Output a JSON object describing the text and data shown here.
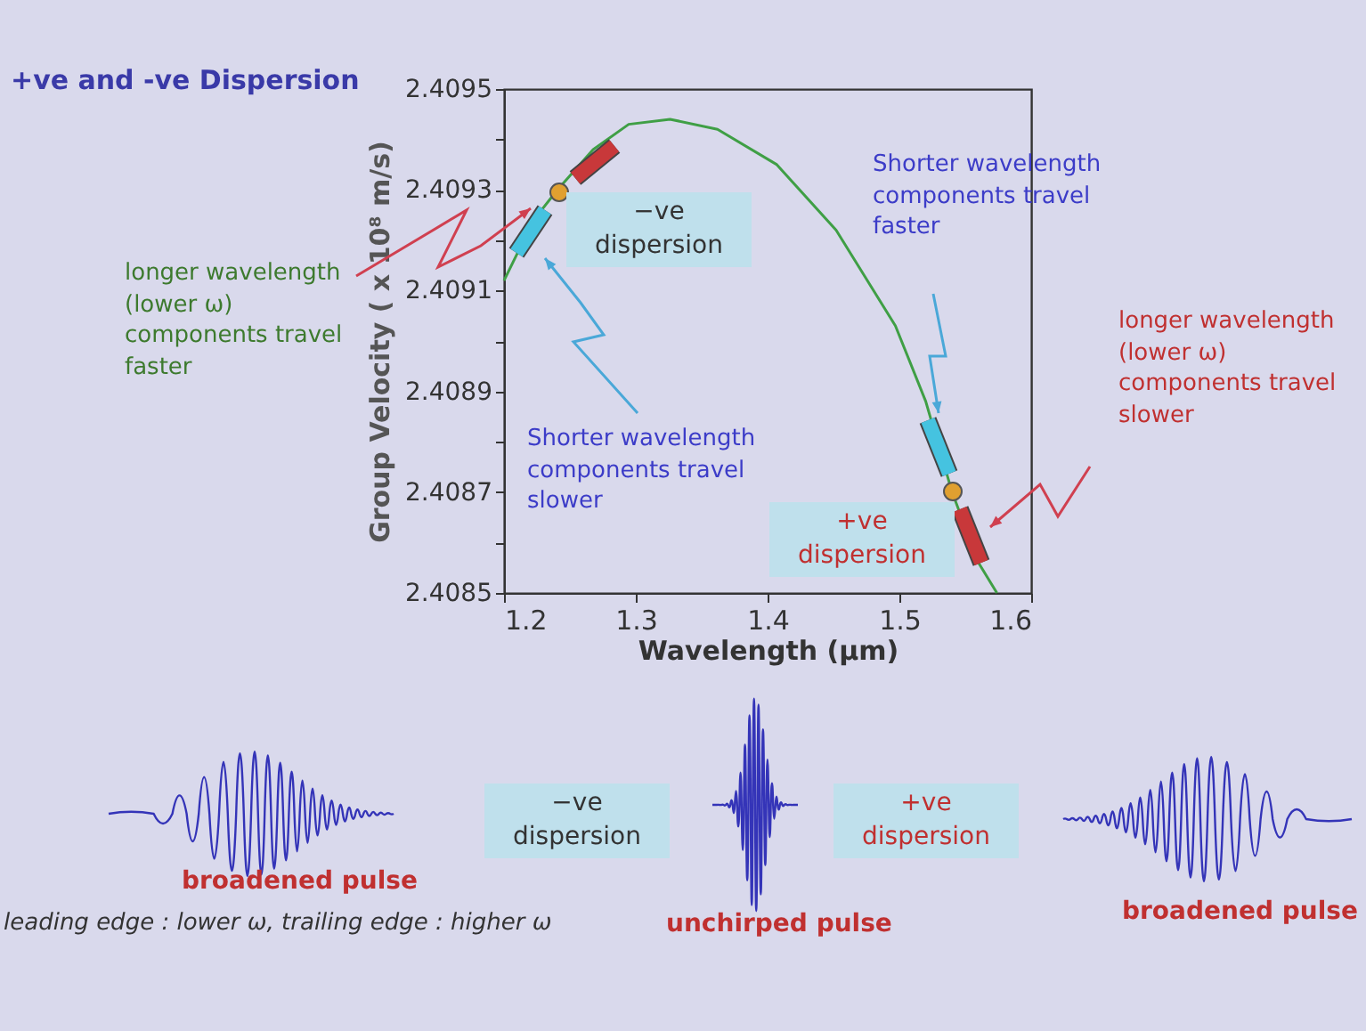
{
  "chart_data": {
    "type": "line",
    "title": "+ve and -ve Dispersion",
    "xlabel": "Wavelength (µm)",
    "ylabel": "Group Velocity ( x 10⁸ m/s)",
    "x": [
      1.2,
      1.2225,
      1.2405,
      1.2676,
      1.2946,
      1.326,
      1.362,
      1.407,
      1.452,
      1.497,
      1.52,
      1.54,
      1.56,
      1.574
    ],
    "series": [
      {
        "color": "#3f9f45",
        "values": [
          2.40912,
          2.40924,
          2.4093,
          2.40938,
          2.40943,
          2.40944,
          2.40942,
          2.40935,
          2.40922,
          2.40903,
          2.40888,
          2.4087,
          2.40856,
          2.4085
        ]
      }
    ],
    "xlim": [
      1.2,
      1.6
    ],
    "xticks": [
      1.2,
      1.3,
      1.4,
      1.5,
      1.6
    ],
    "ylim": [
      2.4085,
      2.4095
    ],
    "yticks": [
      2.4085,
      {
        "value": 2.4086,
        "label": null
      },
      2.4087,
      {
        "value": 2.4088,
        "label": null
      },
      2.4089,
      {
        "value": 2.409,
        "label": null
      },
      2.4091,
      {
        "value": 2.4092,
        "label": null
      },
      2.4093,
      {
        "value": 2.4094,
        "label": null
      },
      2.4095
    ],
    "grid": false,
    "marker": "none",
    "line_style": "solid",
    "annotations": [
      "−ve dispersion",
      "Shorter wavelength components travel slower",
      "Shorter wavelength components travel faster",
      "+ve dispersion",
      "longer wavelength (lower ω) components travel faster",
      "longer wavelength (lower ω) components travel slower",
      "−ve dispersion",
      "+ve dispersion",
      "broadened pulse",
      "unchirped pulse",
      "broadened pulse",
      "leading edge : lower ω, trailing edge : higher ω"
    ]
  }
}
